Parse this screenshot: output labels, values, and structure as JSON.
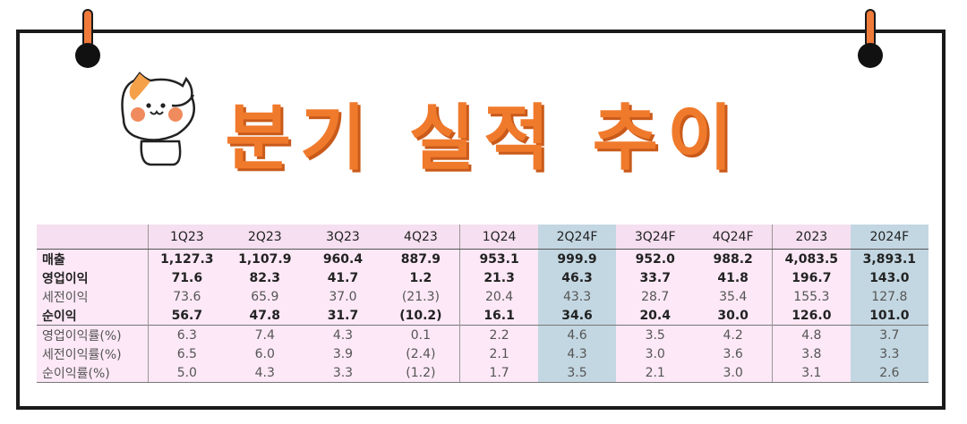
{
  "title": "분기 실적 추이",
  "icons": {
    "cat": "cat-mascot-icon",
    "pin": "pin-icon"
  },
  "colors": {
    "accent": "#f07a2c",
    "table_bg": "#fce8f6",
    "highlight": "#c3d7e2"
  },
  "table": {
    "headers": [
      "",
      "1Q23",
      "2Q23",
      "3Q23",
      "4Q23",
      "1Q24",
      "2Q24F",
      "3Q24F",
      "4Q24F",
      "2023",
      "2024F"
    ],
    "rows": [
      {
        "label": "매출",
        "values": [
          "1,127.3",
          "1,107.9",
          "960.4",
          "887.9",
          "953.1",
          "999.9",
          "952.0",
          "988.2",
          "4,083.5",
          "3,893.1"
        ]
      },
      {
        "label": "영업이익",
        "values": [
          "71.6",
          "82.3",
          "41.7",
          "1.2",
          "21.3",
          "46.3",
          "33.7",
          "41.8",
          "196.7",
          "143.0"
        ]
      },
      {
        "label": "세전이익",
        "values": [
          "73.6",
          "65.9",
          "37.0",
          "(21.3)",
          "20.4",
          "43.3",
          "28.7",
          "35.4",
          "155.3",
          "127.8"
        ]
      },
      {
        "label": "순이익",
        "values": [
          "56.7",
          "47.8",
          "31.7",
          "(10.2)",
          "16.1",
          "34.6",
          "20.4",
          "30.0",
          "126.0",
          "101.0"
        ]
      },
      {
        "label": "영업이익률(%)",
        "values": [
          "6.3",
          "7.4",
          "4.3",
          "0.1",
          "2.2",
          "4.6",
          "3.5",
          "4.2",
          "4.8",
          "3.7"
        ]
      },
      {
        "label": "세전이익률(%)",
        "values": [
          "6.5",
          "6.0",
          "3.9",
          "(2.4)",
          "2.1",
          "4.3",
          "3.0",
          "3.6",
          "3.8",
          "3.3"
        ]
      },
      {
        "label": "순이익률(%)",
        "values": [
          "5.0",
          "4.3",
          "3.3",
          "(1.2)",
          "1.7",
          "3.5",
          "2.1",
          "3.0",
          "3.1",
          "2.6"
        ]
      }
    ]
  }
}
